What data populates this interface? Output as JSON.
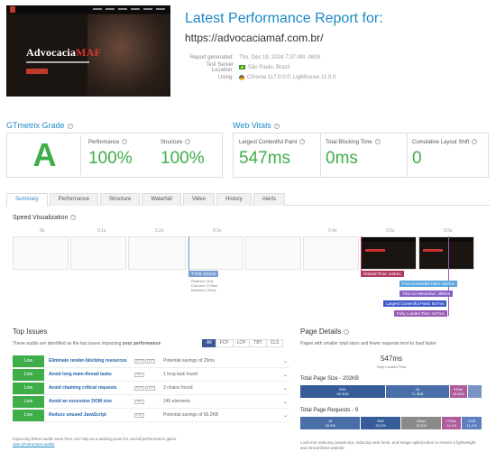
{
  "header": {
    "title": "Latest Performance Report for:",
    "url": "https://advocaciamaf.com.br/",
    "meta": [
      {
        "key": "Report generated:",
        "value": "Thu, Dec 19, 2024 7:37 AM -0800",
        "icon": ""
      },
      {
        "key": "Test Server Location:",
        "value": "São Paulo, Brazil",
        "icon": "brazil-flag-icon"
      },
      {
        "key": "Using:",
        "value": "Chrome 117.0.0.0, Lighthouse 11.0.0",
        "icon": "chrome-icon"
      }
    ],
    "thumbnail": {
      "title_prefix": "Advocacia",
      "title_accent": "MAF"
    }
  },
  "grade": {
    "title": "GTmetrix Grade",
    "letter": "A",
    "performance_label": "Performance",
    "performance_value": "100%",
    "structure_label": "Structure",
    "structure_value": "100%"
  },
  "vitals": {
    "title": "Web Vitals",
    "lcp_label": "Largest Contentful Paint",
    "lcp_value": "547ms",
    "tbt_label": "Total Blocking Time",
    "tbt_value": "0ms",
    "cls_label": "Cumulative Layout Shift",
    "cls_value": "0"
  },
  "tabs": [
    "Summary",
    "Performance",
    "Structure",
    "Waterfall",
    "Video",
    "History",
    "Alerts"
  ],
  "speed_viz": {
    "title": "Speed Visualization",
    "ticks": [
      "0s",
      "0.1s",
      "0.2s",
      "0.3s",
      "0.4s",
      "0.5s",
      "0.5s"
    ],
    "ttfb": {
      "label": "TTFB: 241ms",
      "details": [
        "Redirect: 0ms",
        "Connect: 219ms",
        "Backend: 22ms"
      ]
    },
    "markers": [
      {
        "label": "Onload Time: 444ms",
        "color": "#b33a61"
      },
      {
        "label": "First Contentful Paint: 547ms",
        "color": "#5aa8e0"
      },
      {
        "label": "Time to Interactive: 490ms",
        "color": "#8a5fc6"
      },
      {
        "label": "Largest Contentful Paint: 547ms",
        "color": "#3c58c9"
      },
      {
        "label": "Fully Loaded Time: 547ms",
        "color": "#9b59b6"
      }
    ]
  },
  "top_issues": {
    "title": "Top Issues",
    "subtitle_pre": "These audits are identified as the top issues impacting ",
    "subtitle_bold": "your performance",
    "filters": [
      "All",
      "FCP",
      "LCP",
      "TBT",
      "CLS"
    ],
    "items": [
      {
        "severity": "Low",
        "name": "Eliminate render-blocking resources",
        "badges": [
          "FCP",
          "LCP"
        ],
        "impact": "Potential savings of 25ms"
      },
      {
        "severity": "Low",
        "name": "Avoid long main-thread tasks",
        "badges": [
          "TBT"
        ],
        "impact": "1 long task found"
      },
      {
        "severity": "Low",
        "name": "Avoid chaining critical requests",
        "badges": [
          "FCP",
          "LCP"
        ],
        "impact": "3 chains found"
      },
      {
        "severity": "Low",
        "name": "Avoid an excessive DOM size",
        "badges": [
          "TBT"
        ],
        "impact": "245 elements"
      },
      {
        "severity": "Low",
        "name": "Reduce unused JavaScript",
        "badges": [
          "LCP"
        ],
        "impact": "Potential savings of 56.2KB"
      }
    ],
    "footer_text": "Improving these audits seen here can help as a starting point for overall performance gains.",
    "footer_link": "See all Structure audits"
  },
  "page_details": {
    "title": "Page Details",
    "subtitle": "Pages with smaller total sizes and fewer requests tend to load faster",
    "fully_loaded_value": "547ms",
    "fully_loaded_label": "Fully Loaded Time",
    "size_title": "Total Page Size - 202KB",
    "size_segments": [
      {
        "label": "IMG",
        "value": "96.3KB",
        "color": "#365c9a",
        "pct": 47
      },
      {
        "label": "JS",
        "value": "71.3KB",
        "color": "#4a6fa8",
        "pct": 35
      },
      {
        "label": "HTML",
        "value": "18.8KB",
        "color": "#b05c9b",
        "pct": 10
      },
      {
        "label": "",
        "value": "",
        "color": "#7b93c4",
        "pct": 8
      }
    ],
    "requests_title": "Total Page Requests - 9",
    "request_segments": [
      {
        "label": "JS",
        "value": "33.3%",
        "color": "#4a6fa8",
        "pct": 33.3
      },
      {
        "label": "IMG",
        "value": "22.2%",
        "color": "#365c9a",
        "pct": 22.2
      },
      {
        "label": "Other",
        "value": "22.2%",
        "color": "#8a8a8a",
        "pct": 22.2
      },
      {
        "label": "HTML",
        "value": "11.1%",
        "color": "#b05c9b",
        "pct": 11.1
      },
      {
        "label": "CSS",
        "value": "11.1%",
        "color": "#5f7fc0",
        "pct": 11.2
      }
    ],
    "footer": "Look into reducing JavaScript, reducing web fonts, and image optimization to ensure a lightweight and streamlined website."
  }
}
